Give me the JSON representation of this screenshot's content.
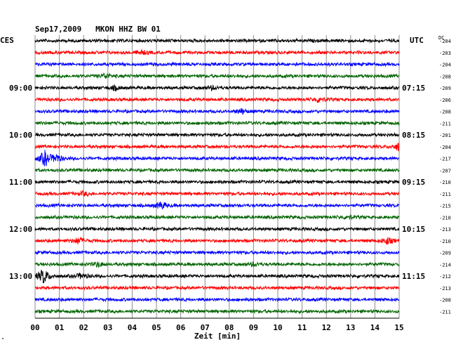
{
  "header": {
    "title": "Sep17,2009   MKON HHZ BW 01",
    "left_zone": "CES",
    "right_zone": "UTC",
    "right_col_label": "DC"
  },
  "chart_data": {
    "type": "line",
    "title": "Sep17,2009   MKON HHZ BW 01",
    "xlabel": "Zeit [min]",
    "ylabel": "",
    "xlim": [
      0,
      15
    ],
    "x_ticks": [
      "00",
      "01",
      "02",
      "03",
      "04",
      "05",
      "06",
      "07",
      "08",
      "09",
      "10",
      "11",
      "12",
      "13",
      "14",
      "15"
    ],
    "grid": true,
    "trace_colors": [
      "#000000",
      "#ff0000",
      "#0000ff",
      "#006400"
    ],
    "left_labels": [
      {
        "row": 4,
        "label": "09:00"
      },
      {
        "row": 8,
        "label": "10:00"
      },
      {
        "row": 12,
        "label": "11:00"
      },
      {
        "row": 16,
        "label": "12:00"
      },
      {
        "row": 20,
        "label": "13:00"
      }
    ],
    "right_labels": [
      {
        "row": 4,
        "label": "07:15"
      },
      {
        "row": 8,
        "label": "08:15"
      },
      {
        "row": 12,
        "label": "09:15"
      },
      {
        "row": 16,
        "label": "10:15"
      },
      {
        "row": 20,
        "label": "11:15"
      }
    ],
    "dc_offsets": [
      -204,
      -203,
      -204,
      -208,
      -209,
      -206,
      -208,
      -211,
      -201,
      -204,
      -217,
      -207,
      -210,
      -211,
      -215,
      -210,
      -213,
      -210,
      -209,
      -214,
      -212,
      -213,
      -208,
      -211
    ],
    "events": [
      {
        "row": 1,
        "minute": 4.4,
        "strength": 0.4
      },
      {
        "row": 3,
        "minute": 2.9,
        "strength": 0.6
      },
      {
        "row": 4,
        "minute": 3.3,
        "strength": 0.5
      },
      {
        "row": 4,
        "minute": 7.3,
        "strength": 0.4
      },
      {
        "row": 5,
        "minute": 11.7,
        "strength": 0.6
      },
      {
        "row": 6,
        "minute": 8.5,
        "strength": 0.6
      },
      {
        "row": 9,
        "minute": 15.0,
        "strength": 1.0
      },
      {
        "row": 10,
        "minute": 0.4,
        "strength": 1.8
      },
      {
        "row": 10,
        "minute": 0.9,
        "strength": 0.9
      },
      {
        "row": 13,
        "minute": 2.0,
        "strength": 0.4
      },
      {
        "row": 14,
        "minute": 5.2,
        "strength": 0.9
      },
      {
        "row": 15,
        "minute": 12.9,
        "strength": 0.4
      },
      {
        "row": 17,
        "minute": 1.8,
        "strength": 0.8
      },
      {
        "row": 17,
        "minute": 14.5,
        "strength": 0.8
      },
      {
        "row": 19,
        "minute": 2.6,
        "strength": 0.6
      },
      {
        "row": 19,
        "minute": 9.0,
        "strength": 0.4
      },
      {
        "row": 20,
        "minute": 0.35,
        "strength": 1.8
      },
      {
        "row": 20,
        "minute": 1.9,
        "strength": 0.6
      }
    ],
    "bottom_mark": "\""
  }
}
